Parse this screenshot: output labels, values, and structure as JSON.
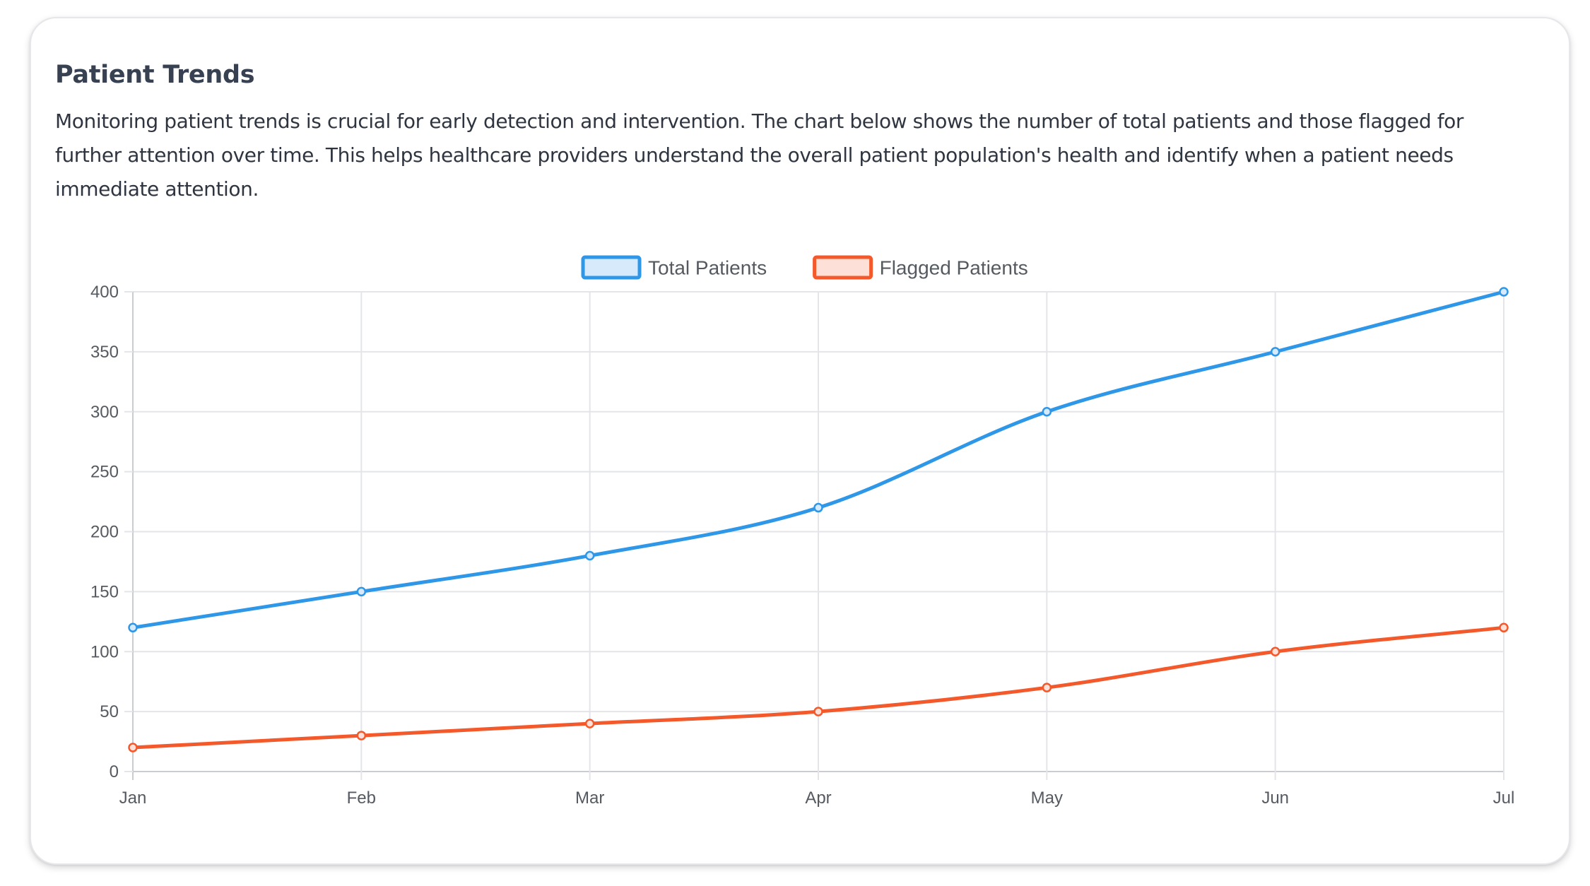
{
  "card": {
    "title": "Patient Trends",
    "description": "Monitoring patient trends is crucial for early detection and intervention. The chart below shows the number of total patients and those flagged for further attention over time. This helps healthcare providers understand the overall patient population's health and identify when a patient needs immediate attention."
  },
  "chart_data": {
    "type": "line",
    "categories": [
      "Jan",
      "Feb",
      "Mar",
      "Apr",
      "May",
      "Jun",
      "Jul"
    ],
    "series": [
      {
        "name": "Total Patients",
        "values": [
          120,
          150,
          180,
          220,
          300,
          350,
          400
        ],
        "color": "#2e97e8",
        "fill": "#d6eafb"
      },
      {
        "name": "Flagged Patients",
        "values": [
          20,
          30,
          40,
          50,
          70,
          100,
          120
        ],
        "color": "#f4592b",
        "fill": "#fde0d7"
      }
    ],
    "ylim": [
      0,
      400
    ],
    "yticks": [
      0,
      50,
      100,
      150,
      200,
      250,
      300,
      350,
      400
    ],
    "grid": true,
    "legend": "top-center",
    "smooth": true
  }
}
